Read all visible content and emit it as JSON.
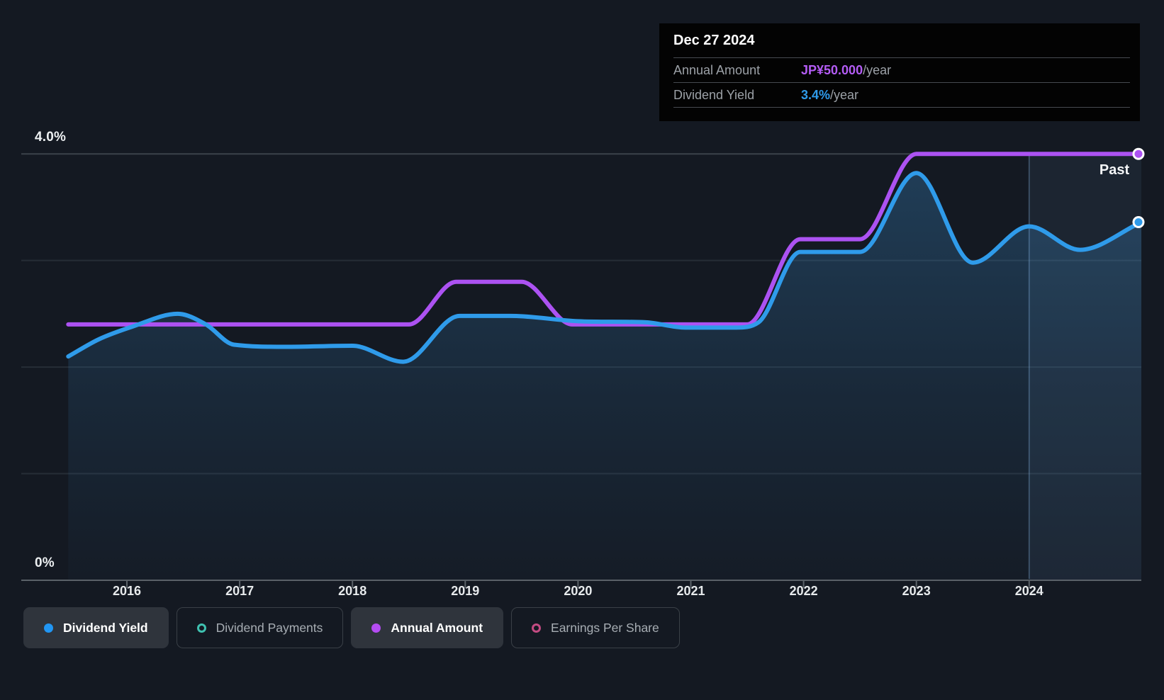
{
  "colors": {
    "background": "#141922",
    "yield_line": "#2F9BEA",
    "amount_line": "#AC52F2",
    "gridline": "#262D36",
    "gridline_top": "#3B424A",
    "axis": "#5A6168",
    "tooltip_bg": "#030303",
    "legend_selected_bg": "#2F343C"
  },
  "tooltip": {
    "date": "Dec 27 2024",
    "rows": [
      {
        "label": "Annual Amount",
        "value": "JP¥50.000",
        "unit": "/year",
        "color": "#B45CF5"
      },
      {
        "label": "Dividend Yield",
        "value": "3.4%",
        "unit": "/year",
        "color": "#2F9BEA"
      }
    ]
  },
  "legend": {
    "items": [
      {
        "label": "Dividend Yield",
        "selected": true,
        "marker": "filled",
        "color": "#2196F3"
      },
      {
        "label": "Dividend Payments",
        "selected": false,
        "marker": "ring",
        "color": "#3FC1B0"
      },
      {
        "label": "Annual Amount",
        "selected": true,
        "marker": "filled",
        "color": "#B44CF2"
      },
      {
        "label": "Earnings Per Share",
        "selected": false,
        "marker": "ring",
        "color": "#C34B82"
      }
    ]
  },
  "chart_data": {
    "type": "area",
    "x_axis": {
      "ticks": [
        2016,
        2017,
        2018,
        2019,
        2020,
        2021,
        2022,
        2023,
        2024
      ],
      "range": [
        2015.48,
        2024.995
      ]
    },
    "y_axis": {
      "unit": "%",
      "tick_labels": [
        "4.0%",
        "0%"
      ],
      "range": [
        0,
        4.35
      ],
      "gridlines": [
        4,
        3,
        2,
        1,
        0
      ]
    },
    "past_label": "Past",
    "past_divider_year": 2024,
    "series": [
      {
        "name": "Dividend Yield",
        "unit": "%",
        "color": "#2F9BEA",
        "area": true,
        "points": [
          [
            2015.48,
            2.1
          ],
          [
            2015.75,
            2.26
          ],
          [
            2016.05,
            2.38
          ],
          [
            2016.45,
            2.5
          ],
          [
            2016.7,
            2.4
          ],
          [
            2016.95,
            2.21
          ],
          [
            2017.4,
            2.19
          ],
          [
            2018.0,
            2.2
          ],
          [
            2018.45,
            2.05
          ],
          [
            2018.95,
            2.48
          ],
          [
            2019.4,
            2.48
          ],
          [
            2020.0,
            2.43
          ],
          [
            2020.6,
            2.42
          ],
          [
            2020.95,
            2.37
          ],
          [
            2021.4,
            2.37
          ],
          [
            2021.6,
            2.42
          ],
          [
            2021.97,
            3.08
          ],
          [
            2022.5,
            3.08
          ],
          [
            2023.0,
            3.82
          ],
          [
            2023.5,
            2.98
          ],
          [
            2024.0,
            3.32
          ],
          [
            2024.45,
            3.1
          ],
          [
            2024.995,
            3.36
          ]
        ],
        "end_value_label": "3.4%/year"
      },
      {
        "name": "Annual Amount",
        "unit": "JP¥/year",
        "color": "#AC52F2",
        "scale_pct_per_yen": 0.08,
        "scale_note": "JP¥50/year aligns with the 4.0% gridline",
        "points_yen": [
          [
            2015.48,
            30
          ],
          [
            2018.5,
            30
          ],
          [
            2018.92,
            35
          ],
          [
            2019.5,
            35
          ],
          [
            2019.95,
            30
          ],
          [
            2021.5,
            30
          ],
          [
            2021.97,
            40
          ],
          [
            2022.5,
            40
          ],
          [
            2023.0,
            50
          ],
          [
            2024.995,
            50
          ]
        ],
        "end_value_label": "JP¥50.000/year"
      }
    ]
  }
}
